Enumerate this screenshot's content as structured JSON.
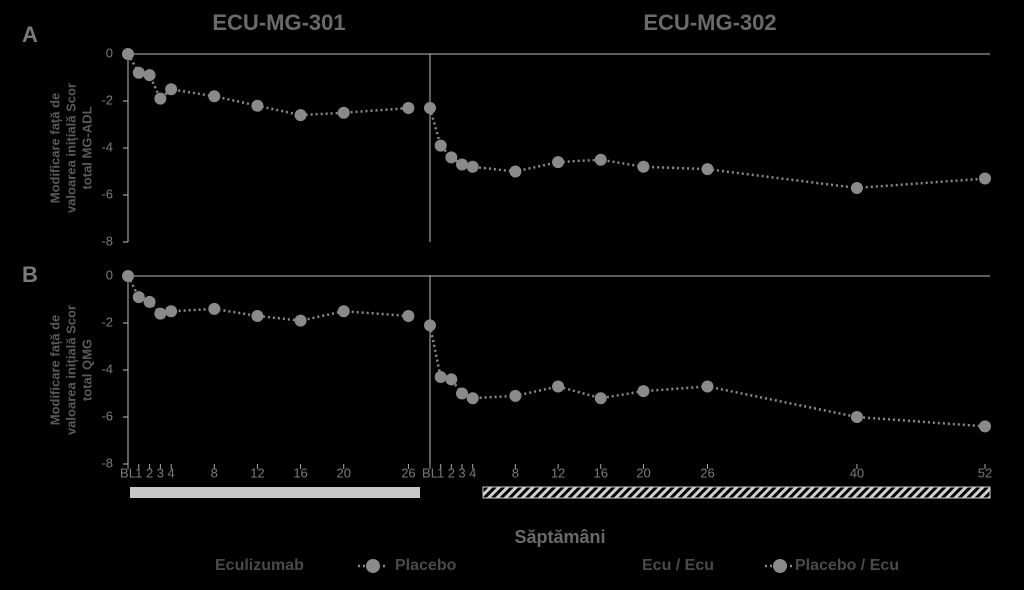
{
  "chart_data": {
    "type": "line",
    "x_label": "Săptămâni",
    "studies": [
      {
        "title": "ECU-MG-301",
        "xlim": [
          0,
          28
        ],
        "xticks": [
          {
            "value": 0,
            "label": "BL"
          },
          1,
          2,
          3,
          4,
          8,
          12,
          16,
          20,
          26
        ]
      },
      {
        "title": "ECU-MG-302",
        "xlim": [
          0,
          52
        ],
        "xticks": [
          {
            "value": 0,
            "label": "BL"
          },
          1,
          2,
          3,
          4,
          8,
          12,
          16,
          20,
          26,
          40,
          52
        ]
      }
    ],
    "panels": [
      {
        "label": "A",
        "y_label": [
          "Modificare față de",
          "valoarea inițială Scor",
          "total MG-ADL"
        ],
        "ylim": [
          -8,
          0
        ],
        "yticks": [
          0,
          -2,
          -4,
          -6,
          -8
        ],
        "series": [
          {
            "study": 0,
            "color": "#8a8a8a",
            "x": [
              0,
              1,
              2,
              3,
              4,
              8,
              12,
              16,
              20,
              26
            ],
            "values": [
              0,
              -0.8,
              -0.9,
              -1.9,
              -1.5,
              -1.8,
              -2.2,
              -2.6,
              -2.5,
              -2.3
            ]
          },
          {
            "study": 1,
            "color": "#8a8a8a",
            "x": [
              0,
              1,
              2,
              3,
              4,
              8,
              12,
              16,
              20,
              26,
              40,
              52
            ],
            "values": [
              -2.3,
              -3.9,
              -4.4,
              -4.7,
              -4.8,
              -5.0,
              -4.6,
              -4.5,
              -4.8,
              -4.9,
              -5.7,
              -5.3
            ]
          }
        ]
      },
      {
        "label": "B",
        "y_label": [
          "Modificare față de",
          "valoarea inițială Scor",
          "total QMG"
        ],
        "ylim": [
          -8,
          0
        ],
        "yticks": [
          0,
          -2,
          -4,
          -6,
          -8
        ],
        "series": [
          {
            "study": 0,
            "color": "#8a8a8a",
            "x": [
              0,
              1,
              2,
              3,
              4,
              8,
              12,
              16,
              20,
              26
            ],
            "values": [
              0,
              -0.9,
              -1.1,
              -1.6,
              -1.5,
              -1.4,
              -1.7,
              -1.9,
              -1.5,
              -1.7
            ]
          },
          {
            "study": 1,
            "color": "#8a8a8a",
            "x": [
              0,
              1,
              2,
              3,
              4,
              8,
              12,
              16,
              20,
              26,
              40,
              52
            ],
            "values": [
              -2.1,
              -4.3,
              -4.4,
              -5.0,
              -5.2,
              -5.1,
              -4.7,
              -5.2,
              -4.9,
              -4.7,
              -6.0,
              -6.4
            ]
          }
        ]
      }
    ],
    "legend": [
      {
        "name": "Eculizumab",
        "color": "#000000"
      },
      {
        "name": "Placebo",
        "color": "#8a8a8a"
      },
      {
        "name": "Ecu / Ecu",
        "color": "#000000"
      },
      {
        "name": "Placebo / Ecu",
        "color": "#8a8a8a"
      }
    ]
  }
}
